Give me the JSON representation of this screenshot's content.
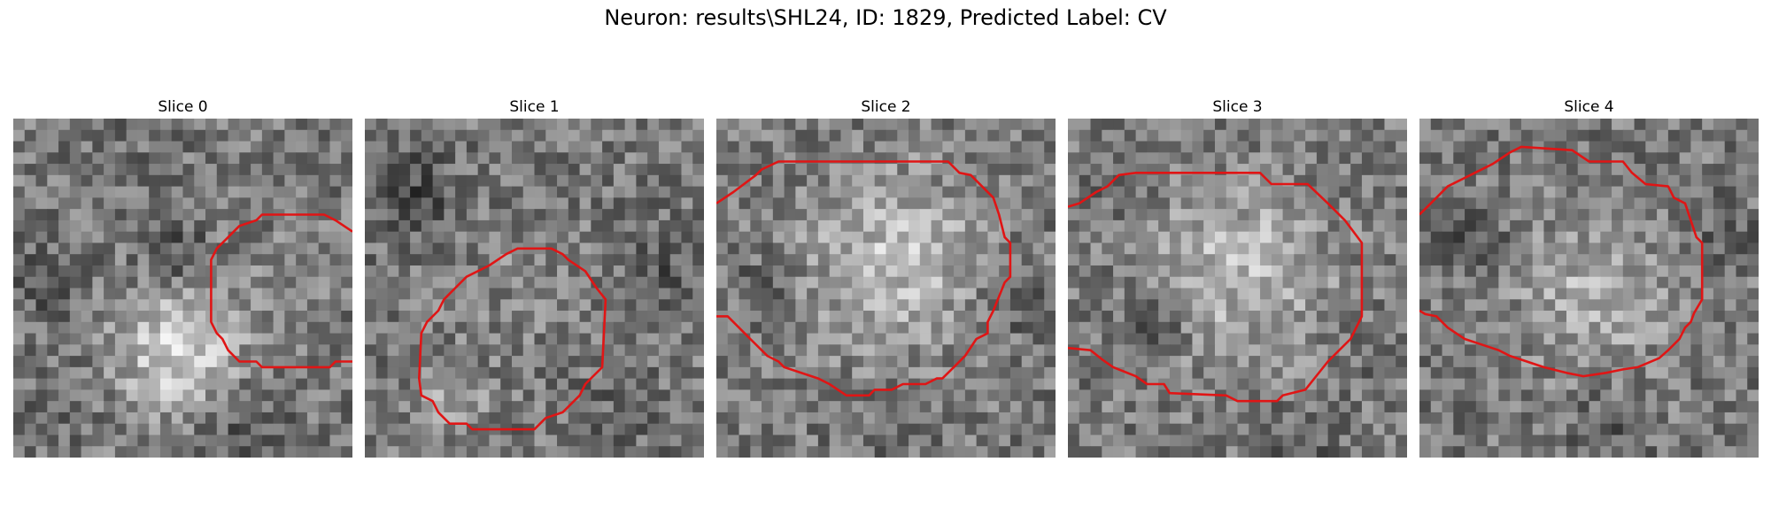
{
  "figure": {
    "title": "Neuron: results\\SHL24, ID: 1829, Predicted Label: CV"
  },
  "contour_color": "#e01515",
  "slices": [
    {
      "label": "Slice 0",
      "description": "grayscale microscopy slice with red contour at right"
    },
    {
      "label": "Slice 1",
      "description": "grayscale microscopy slice with red contour at center-left"
    },
    {
      "label": "Slice 2",
      "description": "grayscale microscopy slice with large red contour"
    },
    {
      "label": "Slice 3",
      "description": "grayscale microscopy slice with large red contour"
    },
    {
      "label": "Slice 4",
      "description": "grayscale microscopy slice with large red contour"
    }
  ]
}
